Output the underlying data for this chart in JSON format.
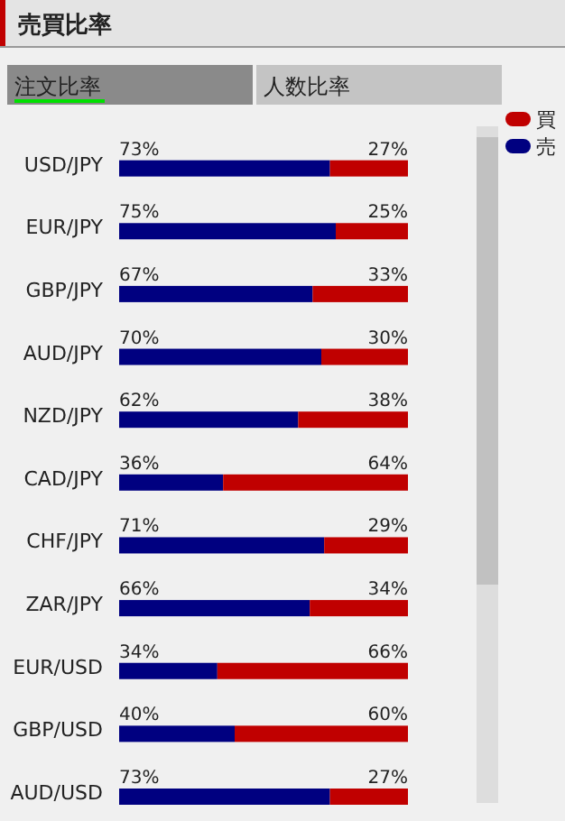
{
  "chart_data": {
    "type": "bar",
    "orientation": "horizontal",
    "stacked": true,
    "title": "売買比率",
    "annotations": [
      "注文比率",
      "人数比率"
    ],
    "categories": [
      "USD/JPY",
      "EUR/JPY",
      "GBP/JPY",
      "AUD/JPY",
      "NZD/JPY",
      "CAD/JPY",
      "CHF/JPY",
      "ZAR/JPY",
      "EUR/USD",
      "GBP/USD",
      "AUD/USD"
    ],
    "xlim": [
      0,
      100
    ],
    "series": [
      {
        "name": "売",
        "color": "#000080",
        "values": [
          73,
          75,
          67,
          70,
          62,
          36,
          71,
          66,
          34,
          40,
          73
        ],
        "value_labels": [
          "73%",
          "75%",
          "67%",
          "70%",
          "62%",
          "36%",
          "71%",
          "66%",
          "34%",
          "40%",
          "73%"
        ]
      },
      {
        "name": "買",
        "color": "#c00000",
        "values": [
          27,
          25,
          33,
          30,
          38,
          64,
          29,
          34,
          66,
          60,
          27
        ],
        "value_labels": [
          "27%",
          "25%",
          "33%",
          "30%",
          "38%",
          "64%",
          "29%",
          "34%",
          "66%",
          "60%",
          "27%"
        ]
      }
    ],
    "legend": "top right"
  }
}
